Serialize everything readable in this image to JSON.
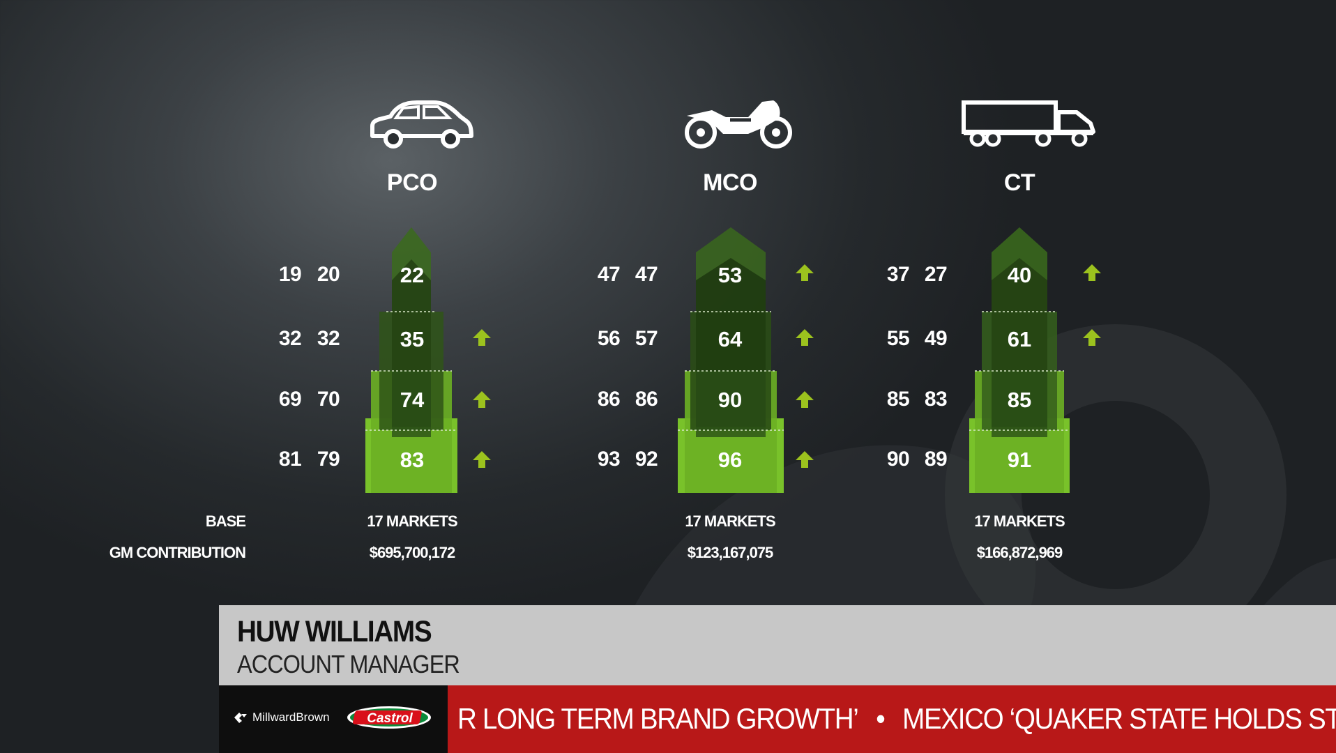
{
  "colors": {
    "green_light": "#79c22a",
    "green_mid": "#4f8e1e",
    "green_dark": "#243f12",
    "arrow": "#9cc21e",
    "ticker_red": "#b81818"
  },
  "columns": [
    {
      "icon": "car-icon",
      "title": "PCO",
      "rows": [
        {
          "a": "19",
          "b": "20",
          "c": "22",
          "up": false
        },
        {
          "a": "32",
          "b": "32",
          "c": "35",
          "up": true
        },
        {
          "a": "69",
          "b": "70",
          "c": "74",
          "up": true
        },
        {
          "a": "81",
          "b": "79",
          "c": "83",
          "up": true
        }
      ],
      "base": "17 MARKETS",
      "gm": "$695,700,172"
    },
    {
      "icon": "motorcycle-icon",
      "title": "MCO",
      "rows": [
        {
          "a": "47",
          "b": "47",
          "c": "53",
          "up": true
        },
        {
          "a": "56",
          "b": "57",
          "c": "64",
          "up": true
        },
        {
          "a": "86",
          "b": "86",
          "c": "90",
          "up": true
        },
        {
          "a": "93",
          "b": "92",
          "c": "96",
          "up": true
        }
      ],
      "base": "17 MARKETS",
      "gm": "$123,167,075"
    },
    {
      "icon": "truck-icon",
      "title": "CT",
      "rows": [
        {
          "a": "37",
          "b": "27",
          "c": "40",
          "up": true
        },
        {
          "a": "55",
          "b": "49",
          "c": "61",
          "up": true
        },
        {
          "a": "85",
          "b": "83",
          "c": "85",
          "up": false
        },
        {
          "a": "90",
          "b": "89",
          "c": "91",
          "up": false
        }
      ],
      "base": "17 MARKETS",
      "gm": "$166,872,969"
    }
  ],
  "labels": {
    "base": "BASE",
    "gm": "GM CONTRIBUTION"
  },
  "lower_third": {
    "name": "HUW WILLIAMS",
    "title": "ACCOUNT MANAGER"
  },
  "logos": {
    "millward_brown": "MillwardBrown",
    "castrol": "Castrol"
  },
  "ticker": {
    "item1": "R LONG TERM BRAND GROWTH’",
    "item2": "MEXICO ‘QUAKER STATE HOLDS ST"
  }
}
